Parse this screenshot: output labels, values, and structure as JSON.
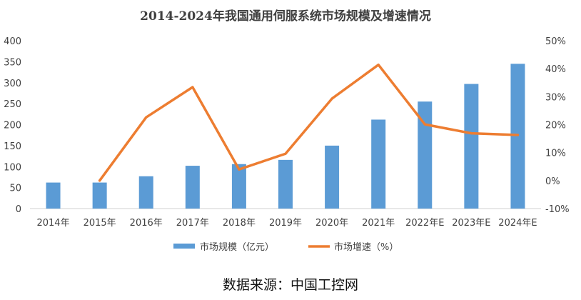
{
  "chart_data": {
    "type": "bar",
    "title": "2014-2024年我国通用伺服系统市场规模及增速情况",
    "categories": [
      "2014年",
      "2015年",
      "2016年",
      "2017年",
      "2018年",
      "2019年",
      "2020年",
      "2021年",
      "2022年E",
      "2023年E",
      "2024年E"
    ],
    "series": [
      {
        "name": "市场规模（亿元）",
        "type": "bar",
        "axis": "left",
        "color": "#5B9BD5",
        "values": [
          62,
          62,
          77,
          102,
          106,
          116,
          150,
          212,
          255,
          297,
          345
        ]
      },
      {
        "name": "市场增速（%）",
        "type": "line",
        "axis": "right",
        "color": "#ED7D31",
        "values": [
          null,
          0.0,
          22.6,
          33.4,
          4.0,
          9.6,
          29.3,
          41.4,
          20.1,
          16.9,
          16.3
        ]
      }
    ],
    "y_left": {
      "ylim": [
        0,
        400
      ],
      "ticks": [
        "0",
        "50",
        "100",
        "150",
        "200",
        "250",
        "300",
        "350",
        "400"
      ]
    },
    "y_right": {
      "ylim": [
        -10,
        50
      ],
      "ticks": [
        "-10%",
        "0%",
        "10%",
        "20%",
        "30%",
        "40%",
        "50%"
      ]
    },
    "grid": false,
    "legend": "bottom"
  },
  "source": "数据来源：中国工控网"
}
